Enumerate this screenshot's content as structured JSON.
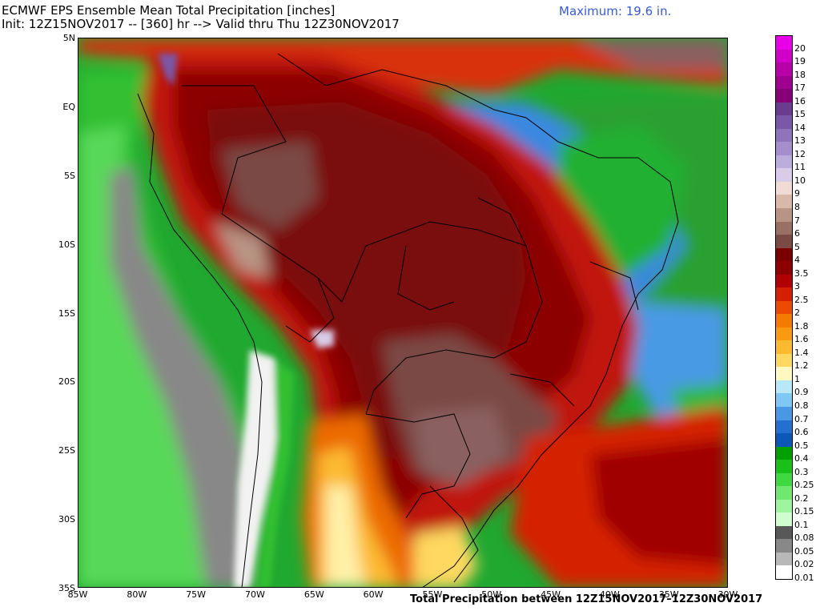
{
  "header": {
    "title": "ECMWF EPS Ensemble Mean Total Precipitation [inches]",
    "subtitle": "Init: 12Z15NOV2017 -- [360] hr --> Valid thru Thu 12Z30NOV2017",
    "maximum": "Maximum: 19.6 in."
  },
  "footer": "Total Precipitation between 12Z15NOV2017–12Z30NOV2017",
  "axes": {
    "lat_labels": [
      "5N",
      "EQ",
      "5S",
      "10S",
      "15S",
      "20S",
      "25S",
      "30S",
      "35S"
    ],
    "lat_values": [
      5,
      0,
      -5,
      -10,
      -15,
      -20,
      -25,
      -30,
      -35
    ],
    "lon_labels": [
      "85W",
      "80W",
      "75W",
      "70W",
      "65W",
      "60W",
      "55W",
      "50W",
      "45W",
      "40W",
      "35W",
      "30W"
    ],
    "lon_values": [
      -85,
      -80,
      -75,
      -70,
      -65,
      -60,
      -55,
      -50,
      -45,
      -40,
      -35,
      -30
    ],
    "lat_range": [
      -35,
      5
    ],
    "lon_range": [
      -85,
      -30
    ]
  },
  "colorbar": {
    "labels": [
      "20",
      "19",
      "18",
      "17",
      "16",
      "15",
      "14",
      "13",
      "12",
      "11",
      "10",
      "9",
      "8",
      "7",
      "6",
      "5",
      "4",
      "3.5",
      "3",
      "2.5",
      "2",
      "1.8",
      "1.6",
      "1.4",
      "1.2",
      "1",
      "0.9",
      "0.8",
      "0.7",
      "0.6",
      "0.5",
      "0.4",
      "0.3",
      "0.25",
      "0.2",
      "0.15",
      "0.1",
      "0.08",
      "0.05",
      "0.02",
      "0.01"
    ],
    "colors": [
      "#e800e8",
      "#d000c8",
      "#b800a8",
      "#a00090",
      "#880078",
      "#6a3c8e",
      "#7a58a8",
      "#8e74ba",
      "#a48ecc",
      "#bcaedc",
      "#d8cce8",
      "#f0dcd4",
      "#d8b8a8",
      "#b89484",
      "#987064",
      "#7a4a44",
      "#7a0000",
      "#8c0000",
      "#b00000",
      "#d42000",
      "#ec4a00",
      "#f47a00",
      "#fa9a10",
      "#fcba30",
      "#fed860",
      "#fff8c0",
      "#b8e8f8",
      "#80c8f4",
      "#4898e4",
      "#2470d0",
      "#0c58b8",
      "#00a000",
      "#18c018",
      "#40d840",
      "#70e870",
      "#a0f4a0",
      "#d0fcd0",
      "#585858",
      "#888888",
      "#b8b8b8",
      "#ffffff"
    ]
  }
}
